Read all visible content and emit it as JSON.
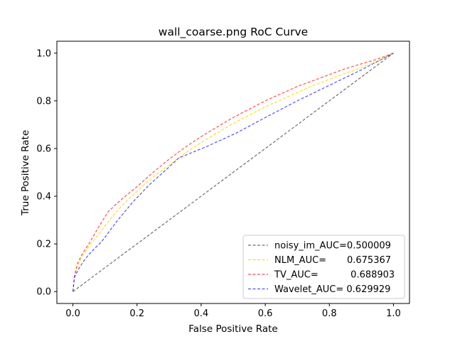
{
  "chart_data": {
    "type": "line",
    "title": "wall_coarse.png RoC Curve",
    "xlabel": "False Positive Rate",
    "ylabel": "True Positive Rate",
    "xlim": [
      -0.05,
      1.05
    ],
    "ylim": [
      -0.05,
      1.05
    ],
    "xticks": [
      "0.0",
      "0.2",
      "0.4",
      "0.6",
      "0.8",
      "1.0"
    ],
    "yticks": [
      "0.0",
      "0.2",
      "0.4",
      "0.6",
      "0.8",
      "1.0"
    ],
    "grid": false,
    "legend_position": "lower right",
    "series": [
      {
        "name": "noisy_im_AUC=0.500009",
        "color": "#555555",
        "x": [
          0.0,
          1.0
        ],
        "y": [
          0.0,
          1.0
        ]
      },
      {
        "name": "NLM_AUC=       0.675367",
        "color": "#ffd700",
        "x": [
          0.0,
          0.005,
          0.015,
          0.03,
          0.05,
          0.08,
          0.12,
          0.16,
          0.2,
          0.25,
          0.3,
          0.35,
          0.4,
          0.45,
          0.5,
          0.55,
          0.6,
          0.65,
          0.7,
          0.75,
          0.8,
          0.85,
          0.9,
          0.95,
          1.0
        ],
        "y": [
          0.0,
          0.06,
          0.11,
          0.15,
          0.19,
          0.24,
          0.31,
          0.37,
          0.42,
          0.48,
          0.53,
          0.58,
          0.625,
          0.665,
          0.705,
          0.74,
          0.775,
          0.805,
          0.835,
          0.865,
          0.89,
          0.915,
          0.94,
          0.965,
          1.0
        ]
      },
      {
        "name": "TV_AUC=           0.688903",
        "color": "#ff3333",
        "x": [
          0.0,
          0.005,
          0.015,
          0.03,
          0.05,
          0.08,
          0.11,
          0.15,
          0.2,
          0.25,
          0.3,
          0.35,
          0.4,
          0.45,
          0.5,
          0.55,
          0.6,
          0.65,
          0.7,
          0.75,
          0.8,
          0.85,
          0.9,
          0.95,
          1.0
        ],
        "y": [
          0.0,
          0.07,
          0.12,
          0.16,
          0.2,
          0.27,
          0.335,
          0.385,
          0.44,
          0.5,
          0.555,
          0.605,
          0.65,
          0.69,
          0.73,
          0.765,
          0.8,
          0.83,
          0.86,
          0.885,
          0.91,
          0.935,
          0.955,
          0.975,
          1.0
        ]
      },
      {
        "name": "Wavelet_AUC= 0.629929",
        "color": "#3333ff",
        "x": [
          0.0,
          0.005,
          0.02,
          0.04,
          0.06,
          0.09,
          0.14,
          0.19,
          0.24,
          0.29,
          0.33,
          0.42,
          0.51,
          0.6,
          0.7,
          0.8,
          0.9,
          1.0
        ],
        "y": [
          0.0,
          0.06,
          0.1,
          0.14,
          0.17,
          0.21,
          0.3,
          0.38,
          0.45,
          0.51,
          0.56,
          0.61,
          0.665,
          0.73,
          0.8,
          0.865,
          0.93,
          1.0
        ]
      }
    ]
  }
}
